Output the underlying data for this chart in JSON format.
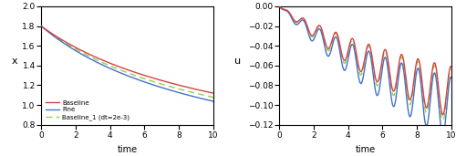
{
  "title": "",
  "left_ylabel": "x",
  "right_ylabel": "u",
  "xlabel": "time",
  "xlim": [
    0,
    10
  ],
  "left_ylim": [
    0.8,
    2.0
  ],
  "right_ylim": [
    -0.12,
    0.0
  ],
  "left_yticks": [
    0.8,
    1.0,
    1.2,
    1.4,
    1.6,
    1.8,
    2.0
  ],
  "right_yticks": [
    -0.12,
    -0.1,
    -0.08,
    -0.06,
    -0.04,
    -0.02,
    0.0
  ],
  "xticks": [
    0,
    2,
    4,
    6,
    8,
    10
  ],
  "colors": {
    "baseline": "#d94040",
    "fine": "#4472c4",
    "baseline1": "#92d050"
  },
  "legend_labels": [
    "Baseline",
    "Fine",
    "Baseline_1 (dt=2e-3)"
  ],
  "figsize": [
    5.0,
    1.71
  ],
  "dpi": 100
}
